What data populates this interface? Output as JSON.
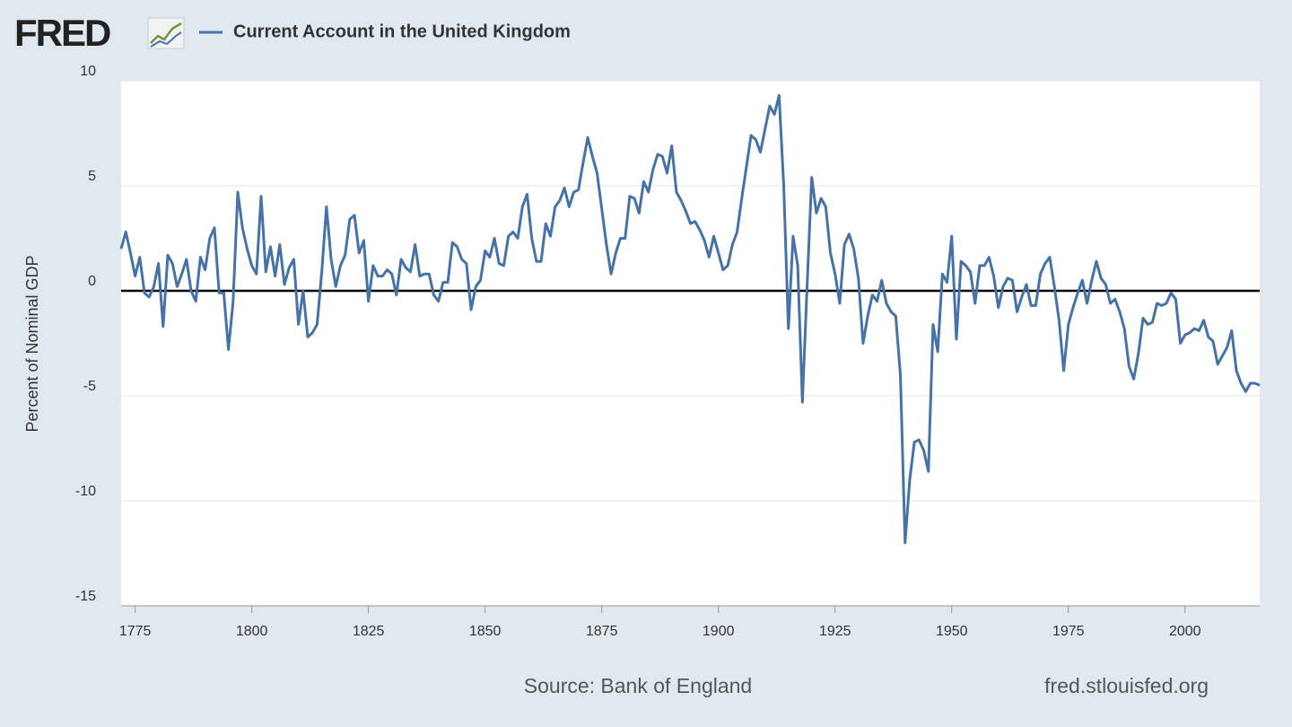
{
  "logo": "FRED",
  "chart_data": {
    "type": "line",
    "y_label": "Percent of Nominal GDP",
    "source": "Source: Bank of England",
    "site": "fred.stlouisfed.org",
    "x": [
      1772,
      1773,
      1774,
      1775,
      1776,
      1777,
      1778,
      1779,
      1780,
      1781,
      1782,
      1783,
      1784,
      1785,
      1786,
      1787,
      1788,
      1789,
      1790,
      1791,
      1792,
      1793,
      1794,
      1795,
      1796,
      1797,
      1798,
      1799,
      1800,
      1801,
      1802,
      1803,
      1804,
      1805,
      1806,
      1807,
      1808,
      1809,
      1810,
      1811,
      1812,
      1813,
      1814,
      1815,
      1816,
      1817,
      1818,
      1819,
      1820,
      1821,
      1822,
      1823,
      1824,
      1825,
      1826,
      1827,
      1828,
      1829,
      1830,
      1831,
      1832,
      1833,
      1834,
      1835,
      1836,
      1837,
      1838,
      1839,
      1840,
      1841,
      1842,
      1843,
      1844,
      1845,
      1846,
      1847,
      1848,
      1849,
      1850,
      1851,
      1852,
      1853,
      1854,
      1855,
      1856,
      1857,
      1858,
      1859,
      1860,
      1861,
      1862,
      1863,
      1864,
      1865,
      1866,
      1867,
      1868,
      1869,
      1870,
      1871,
      1872,
      1873,
      1874,
      1875,
      1876,
      1877,
      1878,
      1879,
      1880,
      1881,
      1882,
      1883,
      1884,
      1885,
      1886,
      1887,
      1888,
      1889,
      1890,
      1891,
      1892,
      1893,
      1894,
      1895,
      1896,
      1897,
      1898,
      1899,
      1900,
      1901,
      1902,
      1903,
      1904,
      1905,
      1906,
      1907,
      1908,
      1909,
      1910,
      1911,
      1912,
      1913,
      1914,
      1915,
      1916,
      1917,
      1918,
      1919,
      1920,
      1921,
      1922,
      1923,
      1924,
      1925,
      1926,
      1927,
      1928,
      1929,
      1930,
      1931,
      1932,
      1933,
      1934,
      1935,
      1936,
      1937,
      1938,
      1939,
      1940,
      1941,
      1942,
      1943,
      1944,
      1945,
      1946,
      1947,
      1948,
      1949,
      1950,
      1951,
      1952,
      1953,
      1954,
      1955,
      1956,
      1957,
      1958,
      1959,
      1960,
      1961,
      1962,
      1963,
      1964,
      1965,
      1966,
      1967,
      1968,
      1969,
      1970,
      1971,
      1972,
      1973,
      1974,
      1975,
      1976,
      1977,
      1978,
      1979,
      1980,
      1981,
      1982,
      1983,
      1984,
      1985,
      1986,
      1987,
      1988,
      1989,
      1990,
      1991,
      1992,
      1993,
      1994,
      1995,
      1996,
      1997,
      1998,
      1999,
      2000,
      2001,
      2002,
      2003,
      2004,
      2005,
      2006,
      2007,
      2008,
      2009,
      2010,
      2011,
      2012,
      2013,
      2014,
      2015,
      2016
    ],
    "series": [
      {
        "name": "Current Account in the United Kingdom",
        "color": "#4572a7",
        "values": [
          2.0,
          2.8,
          1.8,
          0.7,
          1.6,
          -0.1,
          -0.3,
          0.2,
          1.3,
          -1.7,
          1.7,
          1.3,
          0.2,
          0.8,
          1.5,
          0.0,
          -0.5,
          1.6,
          1.0,
          2.5,
          3.0,
          -0.1,
          -0.1,
          -2.8,
          -0.5,
          4.7,
          3.0,
          2.0,
          1.2,
          0.8,
          4.5,
          0.9,
          2.1,
          0.7,
          2.2,
          0.3,
          1.1,
          1.5,
          -1.6,
          0.0,
          -2.2,
          -2.0,
          -1.6,
          0.9,
          4.0,
          1.5,
          0.2,
          1.2,
          1.7,
          3.4,
          3.6,
          1.8,
          2.4,
          -0.5,
          1.2,
          0.7,
          0.7,
          1.0,
          0.8,
          -0.2,
          1.5,
          1.1,
          0.9,
          2.2,
          0.7,
          0.8,
          0.8,
          -0.2,
          -0.5,
          0.4,
          0.4,
          2.3,
          2.1,
          1.5,
          1.3,
          -0.9,
          0.2,
          0.5,
          1.9,
          1.6,
          2.5,
          1.3,
          1.2,
          2.6,
          2.8,
          2.5,
          4.0,
          4.6,
          2.5,
          1.4,
          1.4,
          3.2,
          2.6,
          4.0,
          4.3,
          4.9,
          4.0,
          4.7,
          4.8,
          6.1,
          7.3,
          6.4,
          5.6,
          3.9,
          2.2,
          0.8,
          1.8,
          2.5,
          2.5,
          4.5,
          4.4,
          3.7,
          5.2,
          4.7,
          5.8,
          6.5,
          6.4,
          5.6,
          6.9,
          4.7,
          4.3,
          3.8,
          3.2,
          3.3,
          2.9,
          2.4,
          1.6,
          2.6,
          1.8,
          1.0,
          1.2,
          2.2,
          2.8,
          4.4,
          5.9,
          7.4,
          7.2,
          6.6,
          7.7,
          8.8,
          8.4,
          9.3,
          5.0,
          -1.8,
          2.6,
          1.2,
          -5.3,
          0.2,
          5.4,
          3.7,
          4.4,
          4.0,
          1.8,
          0.8,
          -0.6,
          2.2,
          2.7,
          2.0,
          0.6,
          -2.5,
          -1.2,
          -0.2,
          -0.5,
          0.5,
          -0.6,
          -1.0,
          -1.2,
          -4.0,
          -12.0,
          -9.0,
          -7.2,
          -7.1,
          -7.6,
          -8.6,
          -1.6,
          -2.9,
          0.8,
          0.4,
          2.6,
          -2.3,
          1.4,
          1.2,
          0.9,
          -0.6,
          1.2,
          1.2,
          1.6,
          0.7,
          -0.8,
          0.2,
          0.6,
          0.5,
          -1.0,
          -0.3,
          0.3,
          -0.7,
          -0.7,
          0.8,
          1.3,
          1.6,
          0.2,
          -1.4,
          -3.8,
          -1.6,
          -0.8,
          -0.1,
          0.5,
          -0.6,
          0.5,
          1.4,
          0.6,
          0.3,
          -0.6,
          -0.4,
          -1.0,
          -1.8,
          -3.6,
          -4.2,
          -3.0,
          -1.3,
          -1.6,
          -1.5,
          -0.6,
          -0.7,
          -0.6,
          -0.1,
          -0.4,
          -2.5,
          -2.1,
          -2.0,
          -1.8,
          -1.9,
          -1.4,
          -2.2,
          -2.4,
          -3.5,
          -3.1,
          -2.7,
          -1.9,
          -3.8,
          -4.4,
          -4.8,
          -4.4,
          -4.4,
          -4.5
        ]
      }
    ],
    "xlim": [
      1772,
      2016
    ],
    "ylim": [
      -15,
      10
    ],
    "xticks": [
      1775,
      1800,
      1825,
      1850,
      1875,
      1900,
      1925,
      1950,
      1975,
      2000
    ],
    "yticks": [
      -15,
      -10,
      -5,
      0,
      5,
      10
    ],
    "grid": true,
    "zero_line": true
  }
}
